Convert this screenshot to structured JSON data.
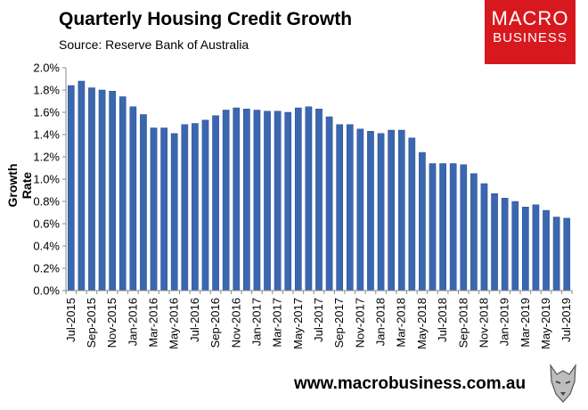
{
  "header": {
    "title": "Quarterly Housing Credit Growth",
    "source": "Source: Reserve Bank of Australia"
  },
  "logo": {
    "line1": "MACRO",
    "line2": "BUSINESS"
  },
  "footer": {
    "url": "www.macrobusiness.com.au"
  },
  "colors": {
    "bar": "#3a67b0",
    "bar_edge": "#2a4f8f",
    "logo_bg": "#d7191f"
  },
  "chart_data": {
    "type": "bar",
    "ylabel": "Growth Rate",
    "xlabel": "",
    "ylim": [
      0,
      0.02
    ],
    "y_ticks": [
      "0.0%",
      "0.2%",
      "0.4%",
      "0.6%",
      "0.8%",
      "1.0%",
      "1.2%",
      "1.4%",
      "1.6%",
      "1.8%",
      "2.0%"
    ],
    "grid": false,
    "legend": "none",
    "categories": [
      "Jul-2015",
      "Aug-2015",
      "Sep-2015",
      "Oct-2015",
      "Nov-2015",
      "Dec-2015",
      "Jan-2016",
      "Feb-2016",
      "Mar-2016",
      "Apr-2016",
      "May-2016",
      "Jun-2016",
      "Jul-2016",
      "Aug-2016",
      "Sep-2016",
      "Oct-2016",
      "Nov-2016",
      "Dec-2016",
      "Jan-2017",
      "Feb-2017",
      "Mar-2017",
      "Apr-2017",
      "May-2017",
      "Jun-2017",
      "Jul-2017",
      "Aug-2017",
      "Sep-2017",
      "Oct-2017",
      "Nov-2017",
      "Dec-2017",
      "Jan-2018",
      "Feb-2018",
      "Mar-2018",
      "Apr-2018",
      "May-2018",
      "Jun-2018",
      "Jul-2018",
      "Aug-2018",
      "Sep-2018",
      "Oct-2018",
      "Nov-2018",
      "Dec-2018",
      "Jan-2019",
      "Feb-2019",
      "Mar-2019",
      "Apr-2019",
      "May-2019",
      "Jun-2019",
      "Jul-2019"
    ],
    "x_tick_labels": [
      "Jul-2015",
      "Sep-2015",
      "Nov-2015",
      "Jan-2016",
      "Mar-2016",
      "May-2016",
      "Jul-2016",
      "Sep-2016",
      "Nov-2016",
      "Jan-2017",
      "Mar-2017",
      "May-2017",
      "Jul-2017",
      "Sep-2017",
      "Nov-2017",
      "Jan-2018",
      "Mar-2018",
      "May-2018",
      "Jul-2018",
      "Sep-2018",
      "Nov-2018",
      "Jan-2019",
      "Mar-2019",
      "May-2019",
      "Jul-2019"
    ],
    "values": [
      0.0184,
      0.0188,
      0.0182,
      0.018,
      0.0179,
      0.0174,
      0.0165,
      0.0158,
      0.0146,
      0.0146,
      0.0141,
      0.0149,
      0.015,
      0.0153,
      0.0157,
      0.0162,
      0.0164,
      0.0163,
      0.0162,
      0.0161,
      0.0161,
      0.016,
      0.0164,
      0.0165,
      0.0163,
      0.0156,
      0.0149,
      0.0149,
      0.0145,
      0.0143,
      0.0141,
      0.0144,
      0.0144,
      0.0137,
      0.0124,
      0.0114,
      0.0114,
      0.0114,
      0.0113,
      0.0105,
      0.0096,
      0.0087,
      0.0083,
      0.008,
      0.0075,
      0.0077,
      0.0072,
      0.0066,
      0.0065
    ]
  }
}
